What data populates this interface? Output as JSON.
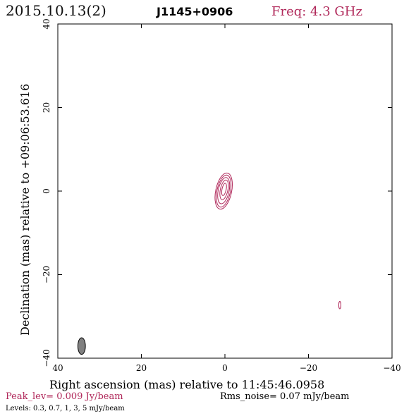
{
  "header": {
    "date": "2015.10.13(2)",
    "source": "J1145+0906",
    "freq": "Freq: 4.3 GHz"
  },
  "colors": {
    "contour": "#b0285a",
    "beam": "#808080",
    "accent": "#b0285a"
  },
  "chart_data": {
    "type": "contour",
    "xlabel": "Right ascension (mas) relative to 11:45:46.0958",
    "ylabel": "Declination (mas) relative to +09:06:53.616",
    "xlim": [
      40,
      -40
    ],
    "ylim": [
      -40,
      40
    ],
    "xticks": [
      40,
      20,
      0,
      -20,
      -40
    ],
    "yticks": [
      -40,
      -20,
      0,
      20,
      40
    ],
    "xtick_labels": [
      "40",
      "20",
      "0",
      "−20",
      "−40"
    ],
    "ytick_labels": [
      "−40",
      "−20",
      "0",
      "20",
      "40"
    ],
    "contours": [
      {
        "x": 0.3,
        "y": 0.0,
        "rx": 1.9,
        "ry": 4.4,
        "rotation_deg": 12
      },
      {
        "x": 0.3,
        "y": 0.0,
        "rx": 1.6,
        "ry": 3.9,
        "rotation_deg": 12
      },
      {
        "x": 0.3,
        "y": 0.1,
        "rx": 1.3,
        "ry": 3.2,
        "rotation_deg": 12
      },
      {
        "x": 0.2,
        "y": 0.3,
        "rx": 0.9,
        "ry": 2.4,
        "rotation_deg": 12
      },
      {
        "x": 0.2,
        "y": 0.4,
        "rx": 0.5,
        "ry": 1.5,
        "rotation_deg": 12
      },
      {
        "x": -27.5,
        "y": -27.3,
        "rx": 0.25,
        "ry": 0.9,
        "rotation_deg": 0
      }
    ],
    "beam": {
      "x": 34.3,
      "y": -37.1,
      "rx": 0.9,
      "ry": 2.0,
      "rotation_deg": 0
    },
    "peak_level": "Peak_lev=  0.009 Jy/beam",
    "rms_noise": "Rms_noise= 0.07 mJy/beam",
    "levels": "Levels: 0.3,  0.7,    1,    3,    5 mJy/beam"
  }
}
